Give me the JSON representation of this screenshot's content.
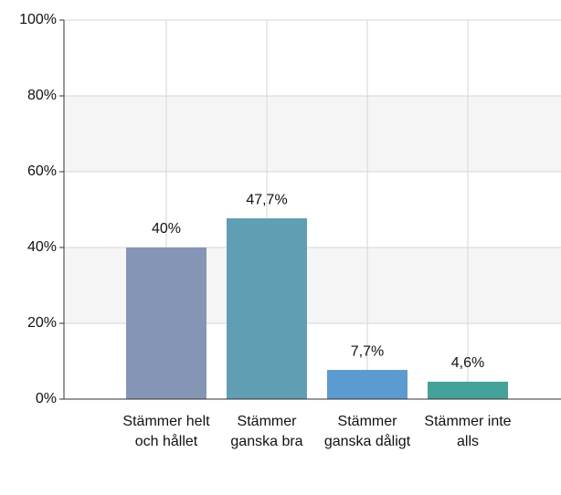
{
  "chart_data": {
    "type": "bar",
    "categories": [
      "Stämmer helt och hållet",
      "Stämmer ganska bra",
      "Stämmer ganska dåligt",
      "Stämmer inte alls"
    ],
    "values": [
      40,
      47.7,
      7.7,
      4.6
    ],
    "value_labels": [
      "40%",
      "47,7%",
      "7,7%",
      "4,6%"
    ],
    "colors": [
      "#8595b5",
      "#5f9eb3",
      "#5b9bd0",
      "#45a29a"
    ],
    "ylim": [
      0,
      100
    ],
    "yticks": [
      {
        "value": 0,
        "label": "0%"
      },
      {
        "value": 20,
        "label": "20%"
      },
      {
        "value": 40,
        "label": "40%"
      },
      {
        "value": 60,
        "label": "60%"
      },
      {
        "value": 80,
        "label": "80%"
      },
      {
        "value": 100,
        "label": "100%"
      }
    ],
    "grid": true
  }
}
